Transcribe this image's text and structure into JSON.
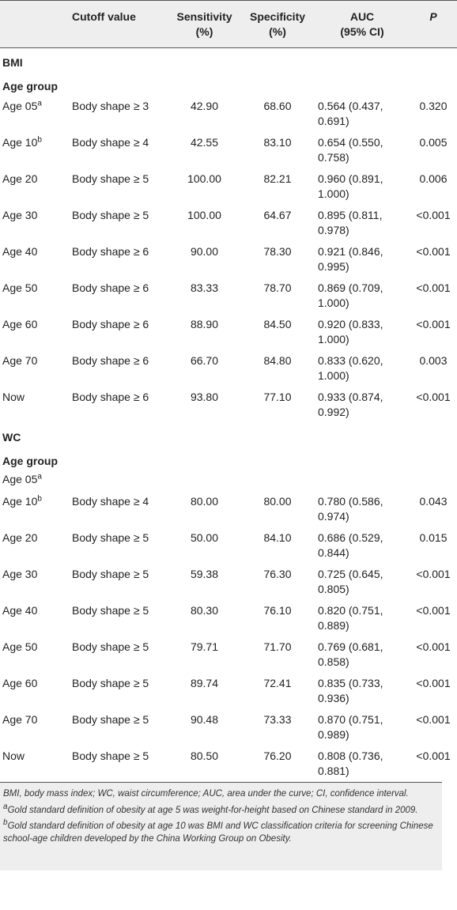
{
  "table": {
    "headers": [
      "",
      "Cutoff value",
      "Sensitivity\n(%)",
      "Specificity\n(%)",
      "AUC\n(95% CI)",
      "P"
    ],
    "header_lines": {
      "cutoff": "Cutoff value",
      "sens_1": "Sensitivity",
      "sens_2": "(%)",
      "spec_1": "Specificity",
      "spec_2": "(%)",
      "auc_1": "AUC",
      "auc_2": "(95% CI)",
      "p": "P"
    },
    "sections": [
      {
        "title": "BMI",
        "group_label": "Age group",
        "rows": [
          {
            "age": "Age 05",
            "sup": "a",
            "cutoff": "Body shape ≥ 3",
            "sensitivity": "42.90",
            "specificity": "68.60",
            "auc": "0.564 (0.437, 0.691)",
            "p": "0.320"
          },
          {
            "age": "Age 10",
            "sup": "b",
            "cutoff": "Body shape ≥ 4",
            "sensitivity": "42.55",
            "specificity": "83.10",
            "auc": "0.654 (0.550, 0.758)",
            "p": "0.005"
          },
          {
            "age": "Age 20",
            "sup": "",
            "cutoff": "Body shape ≥ 5",
            "sensitivity": "100.00",
            "specificity": "82.21",
            "auc": "0.960 (0.891, 1.000)",
            "p": "0.006"
          },
          {
            "age": "Age 30",
            "sup": "",
            "cutoff": "Body shape ≥ 5",
            "sensitivity": "100.00",
            "specificity": "64.67",
            "auc": "0.895 (0.811, 0.978)",
            "p": "<0.001"
          },
          {
            "age": "Age 40",
            "sup": "",
            "cutoff": "Body shape ≥ 6",
            "sensitivity": "90.00",
            "specificity": "78.30",
            "auc": "0.921 (0.846, 0.995)",
            "p": "<0.001"
          },
          {
            "age": "Age 50",
            "sup": "",
            "cutoff": "Body shape ≥ 6",
            "sensitivity": "83.33",
            "specificity": "78.70",
            "auc": "0.869 (0.709, 1.000)",
            "p": "<0.001"
          },
          {
            "age": "Age 60",
            "sup": "",
            "cutoff": "Body shape ≥ 6",
            "sensitivity": "88.90",
            "specificity": "84.50",
            "auc": "0.920 (0.833, 1.000)",
            "p": "<0.001"
          },
          {
            "age": "Age 70",
            "sup": "",
            "cutoff": "Body shape ≥ 6",
            "sensitivity": "66.70",
            "specificity": "84.80",
            "auc": "0.833 (0.620, 1.000)",
            "p": "0.003"
          },
          {
            "age": "Now",
            "sup": "",
            "cutoff": "Body shape ≥ 6",
            "sensitivity": "93.80",
            "specificity": "77.10",
            "auc": "0.933 (0.874, 0.992)",
            "p": "<0.001"
          }
        ]
      },
      {
        "title": "WC",
        "group_label": "Age group",
        "empty_row": {
          "age": "Age 05",
          "sup": "a"
        },
        "rows": [
          {
            "age": "Age 10",
            "sup": "b",
            "cutoff": "Body shape ≥ 4",
            "sensitivity": "80.00",
            "specificity": "80.00",
            "auc": "0.780 (0.586, 0.974)",
            "p": "0.043"
          },
          {
            "age": "Age 20",
            "sup": "",
            "cutoff": "Body shape ≥ 5",
            "sensitivity": "50.00",
            "specificity": "84.10",
            "auc": "0.686 (0.529, 0.844)",
            "p": "0.015"
          },
          {
            "age": "Age 30",
            "sup": "",
            "cutoff": "Body shape ≥ 5",
            "sensitivity": "59.38",
            "specificity": "76.30",
            "auc": "0.725 (0.645, 0.805)",
            "p": "<0.001"
          },
          {
            "age": "Age 40",
            "sup": "",
            "cutoff": "Body shape ≥ 5",
            "sensitivity": "80.30",
            "specificity": "76.10",
            "auc": "0.820 (0.751, 0.889)",
            "p": "<0.001"
          },
          {
            "age": "Age 50",
            "sup": "",
            "cutoff": "Body shape ≥ 5",
            "sensitivity": "79.71",
            "specificity": "71.70",
            "auc": "0.769 (0.681, 0.858)",
            "p": "<0.001"
          },
          {
            "age": "Age 60",
            "sup": "",
            "cutoff": "Body shape ≥ 5",
            "sensitivity": "89.74",
            "specificity": "72.41",
            "auc": "0.835 (0.733, 0.936)",
            "p": "<0.001"
          },
          {
            "age": "Age 70",
            "sup": "",
            "cutoff": "Body shape ≥ 5",
            "sensitivity": "90.48",
            "specificity": "73.33",
            "auc": "0.870 (0.751, 0.989)",
            "p": "<0.001"
          },
          {
            "age": "Now",
            "sup": "",
            "cutoff": "Body shape ≥ 5",
            "sensitivity": "80.50",
            "specificity": "76.20",
            "auc": "0.808 (0.736, 0.881)",
            "p": "<0.001"
          }
        ]
      }
    ]
  },
  "footnotes": {
    "abbreviations": "BMI, body mass index; WC, waist circumference; AUC, area under the curve; CI, confidence interval.",
    "note_a_marker": "a",
    "note_a": "Gold standard definition of obesity at age 5 was weight-for-height based on Chinese standard in 2009.",
    "note_b_marker": "b",
    "note_b": "Gold standard definition of obesity at age 10 was BMI and WC classification criteria for screening Chinese school-age children developed by the China Working Group on Obesity."
  }
}
